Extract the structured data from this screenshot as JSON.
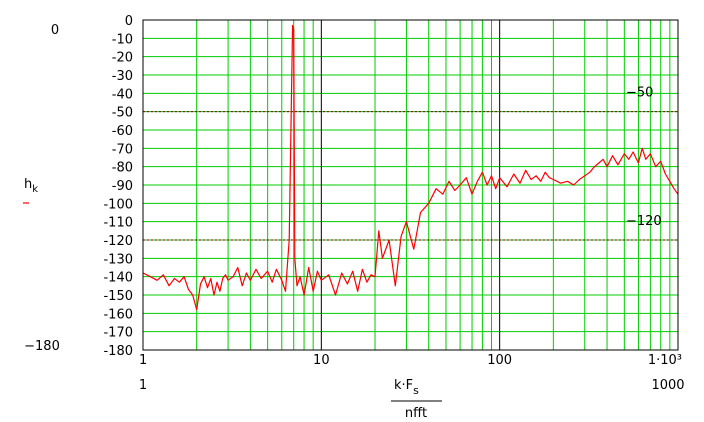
{
  "chart_data": {
    "type": "line",
    "x_scale": "log",
    "xlim": [
      1,
      1000
    ],
    "ylim": [
      -180,
      0
    ],
    "grid": true,
    "x_ticks": [
      {
        "value": 1,
        "label": "1"
      },
      {
        "value": 10,
        "label": "10"
      },
      {
        "value": 100,
        "label": "100"
      },
      {
        "value": 1000,
        "label": "1·10³"
      }
    ],
    "y_ticks": [
      0,
      -10,
      -20,
      -30,
      -40,
      -50,
      -60,
      -70,
      -80,
      -90,
      -100,
      -110,
      -120,
      -130,
      -140,
      -150,
      -160,
      -170,
      -180
    ],
    "y_tick_labels": [
      "0",
      "-10",
      "-20",
      "-30",
      "-40",
      "-50",
      "-60",
      "-70",
      "-80",
      "-90",
      "-100",
      "-110",
      "-120",
      "-130",
      "-140",
      "-150",
      "-160",
      "-170",
      "-180"
    ],
    "y_axis_limit_labels": {
      "top": "0",
      "bottom": "−180"
    },
    "x_axis_limit_labels": {
      "left": "1",
      "right": "1000"
    },
    "ylabel": "h",
    "ylabel_sub": "k",
    "xlabel_numerator": "k·F",
    "xlabel_numerator_sub": "s",
    "xlabel_denominator": "nfft",
    "reference_lines": [
      {
        "value": -50,
        "label": "−50"
      },
      {
        "value": -120,
        "label": "−120"
      }
    ],
    "series": [
      {
        "color": "#ff0000",
        "x": [
          1,
          1.1,
          1.2,
          1.3,
          1.4,
          1.5,
          1.6,
          1.7,
          1.8,
          1.9,
          2,
          2.1,
          2.2,
          2.3,
          2.4,
          2.5,
          2.6,
          2.7,
          2.8,
          2.9,
          3,
          3.2,
          3.4,
          3.6,
          3.8,
          4,
          4.3,
          4.6,
          5,
          5.3,
          5.6,
          6,
          6.3,
          6.6,
          6.8,
          6.9,
          7,
          7.1,
          7.3,
          7.6,
          8,
          8.5,
          9,
          9.5,
          10,
          11,
          12,
          13,
          14,
          15,
          16,
          17,
          18,
          19,
          20,
          21,
          22,
          24,
          26,
          28,
          30,
          33,
          36,
          40,
          44,
          48,
          52,
          56,
          60,
          65,
          70,
          75,
          80,
          85,
          90,
          95,
          100,
          110,
          120,
          130,
          140,
          150,
          160,
          170,
          180,
          190,
          200,
          220,
          240,
          260,
          280,
          300,
          320,
          340,
          360,
          380,
          400,
          430,
          460,
          500,
          530,
          560,
          600,
          630,
          660,
          700,
          750,
          800,
          850,
          900,
          950,
          1000
        ],
        "y": [
          -138,
          -140,
          -142,
          -139,
          -145,
          -141,
          -143,
          -140,
          -147,
          -150,
          -158,
          -144,
          -140,
          -146,
          -141,
          -150,
          -143,
          -148,
          -141,
          -139,
          -142,
          -140,
          -135,
          -145,
          -138,
          -142,
          -136,
          -141,
          -137,
          -143,
          -136,
          -142,
          -148,
          -120,
          -40,
          -3,
          -5,
          -130,
          -145,
          -140,
          -150,
          -135,
          -148,
          -137,
          -142,
          -139,
          -150,
          -138,
          -144,
          -137,
          -148,
          -136,
          -143,
          -139,
          -140,
          -115,
          -130,
          -120,
          -145,
          -118,
          -110,
          -125,
          -105,
          -100,
          -92,
          -95,
          -88,
          -93,
          -90,
          -86,
          -95,
          -88,
          -83,
          -90,
          -85,
          -92,
          -86,
          -91,
          -84,
          -89,
          -82,
          -87,
          -85,
          -88,
          -83,
          -86,
          -87,
          -89,
          -88,
          -90,
          -87,
          -85,
          -83,
          -80,
          -78,
          -76,
          -80,
          -74,
          -79,
          -73,
          -76,
          -72,
          -78,
          -70,
          -76,
          -73,
          -80,
          -77,
          -84,
          -88,
          -92,
          -95
        ]
      }
    ]
  }
}
